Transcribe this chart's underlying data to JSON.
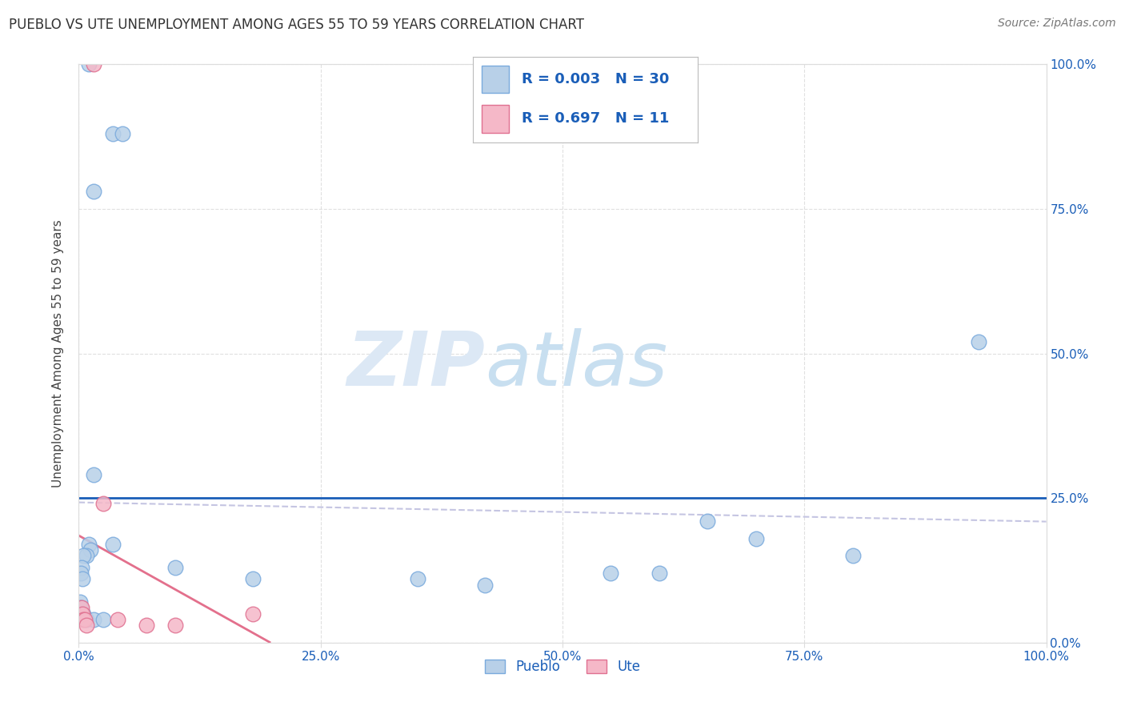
{
  "title": "PUEBLO VS UTE UNEMPLOYMENT AMONG AGES 55 TO 59 YEARS CORRELATION CHART",
  "source": "Source: ZipAtlas.com",
  "ylabel": "Unemployment Among Ages 55 to 59 years",
  "xlim": [
    0.0,
    100.0
  ],
  "ylim": [
    0.0,
    100.0
  ],
  "x_ticks": [
    0.0,
    25.0,
    50.0,
    75.0,
    100.0
  ],
  "y_ticks": [
    0.0,
    25.0,
    50.0,
    75.0,
    100.0
  ],
  "pueblo_color": "#b8d0e8",
  "ute_color": "#f5b8c8",
  "pueblo_edge": "#7aaadd",
  "ute_edge": "#e07090",
  "pueblo_R": 0.003,
  "pueblo_N": 30,
  "ute_R": 0.697,
  "ute_N": 11,
  "blue_hline": 25.0,
  "blue_hline_color": "#1a5eb8",
  "pueblo_scatter": [
    [
      1.0,
      100.0
    ],
    [
      3.5,
      88.0
    ],
    [
      4.5,
      88.0
    ],
    [
      1.5,
      78.0
    ],
    [
      1.5,
      29.0
    ],
    [
      1.0,
      17.0
    ],
    [
      1.2,
      16.0
    ],
    [
      0.8,
      15.0
    ],
    [
      0.5,
      15.0
    ],
    [
      0.3,
      13.0
    ],
    [
      0.2,
      12.0
    ],
    [
      0.4,
      11.0
    ],
    [
      0.1,
      7.0
    ],
    [
      0.2,
      6.0
    ],
    [
      0.3,
      5.0
    ],
    [
      0.5,
      5.0
    ],
    [
      0.8,
      4.0
    ],
    [
      1.5,
      4.0
    ],
    [
      2.5,
      4.0
    ],
    [
      3.5,
      17.0
    ],
    [
      10.0,
      13.0
    ],
    [
      18.0,
      11.0
    ],
    [
      35.0,
      11.0
    ],
    [
      42.0,
      10.0
    ],
    [
      55.0,
      12.0
    ],
    [
      60.0,
      12.0
    ],
    [
      65.0,
      21.0
    ],
    [
      70.0,
      18.0
    ],
    [
      80.0,
      15.0
    ],
    [
      93.0,
      52.0
    ]
  ],
  "ute_scatter": [
    [
      1.5,
      100.0
    ],
    [
      2.5,
      24.0
    ],
    [
      0.3,
      6.0
    ],
    [
      0.4,
      5.0
    ],
    [
      0.5,
      4.0
    ],
    [
      0.6,
      4.0
    ],
    [
      0.8,
      3.0
    ],
    [
      4.0,
      4.0
    ],
    [
      7.0,
      3.0
    ],
    [
      10.0,
      3.0
    ],
    [
      18.0,
      5.0
    ]
  ],
  "pueblo_trendline_color": "#bbbbdd",
  "pueblo_trendline_style": "--",
  "ute_trendline_color": "#e06080",
  "ute_trendline_style": "-",
  "watermark_zip": "ZIP",
  "watermark_atlas": "atlas",
  "watermark_color_zip": "#dce8f5",
  "watermark_color_atlas": "#c8dff0",
  "legend_color_pueblo": "#b8d0e8",
  "legend_color_ute": "#f5b8c8",
  "legend_edge_pueblo": "#7aaadd",
  "legend_edge_ute": "#e07090",
  "legend_text_color": "#1a5eb8",
  "title_color": "#333333",
  "source_color": "#777777",
  "tick_label_color": "#1a5eb8",
  "grid_color": "#dddddd",
  "spine_color": "#dddddd"
}
